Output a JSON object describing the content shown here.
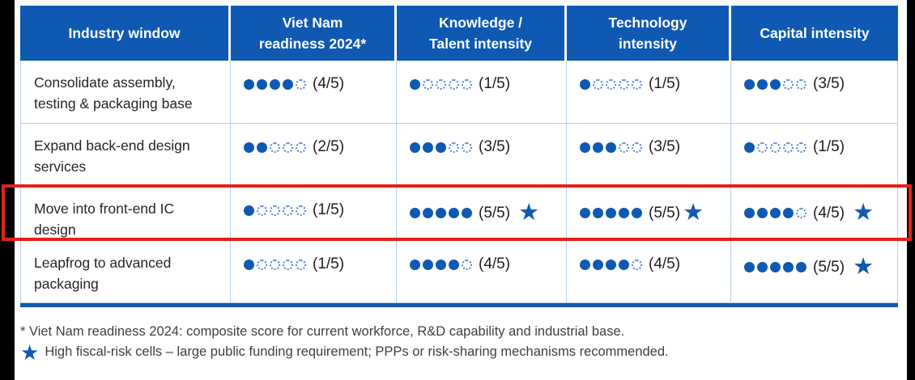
{
  "colors": {
    "header_bg": "#0F59B2",
    "dot_filled": "#0F59B2",
    "dot_empty_outline": "#5585D2",
    "star_blue": "#0F59B2",
    "grid_line": "#B7CFEC",
    "highlight_border": "#E32119",
    "edge_bars": "#000000"
  },
  "table": {
    "columns": [
      {
        "id": "industry",
        "label": "Industry window"
      },
      {
        "id": "readiness",
        "label": "Viet Nam\nreadiness 2024*"
      },
      {
        "id": "knowledge",
        "label": "Knowledge /\nTalent intensity"
      },
      {
        "id": "technology",
        "label": "Technology\nintensity"
      },
      {
        "id": "capital",
        "label": "Capital intensity"
      }
    ],
    "rows": [
      {
        "label": "Consolidate assembly,\ntesting & packaging base",
        "highlighted": false,
        "cells": [
          {
            "filled": 4,
            "total": 5,
            "text": "(4/5)",
            "star": false,
            "star_gap": false
          },
          {
            "filled": 1,
            "total": 5,
            "text": "(1/5)",
            "star": false,
            "star_gap": false
          },
          {
            "filled": 1,
            "total": 5,
            "text": "(1/5)",
            "star": false,
            "star_gap": false
          },
          {
            "filled": 3,
            "total": 5,
            "text": "(3/5)",
            "star": false,
            "star_gap": false
          }
        ]
      },
      {
        "label": "Expand back-end design\nservices",
        "highlighted": false,
        "cells": [
          {
            "filled": 2,
            "total": 5,
            "text": "(2/5)",
            "star": false,
            "star_gap": false
          },
          {
            "filled": 3,
            "total": 5,
            "text": "(3/5)",
            "star": false,
            "star_gap": false
          },
          {
            "filled": 3,
            "total": 5,
            "text": "(3/5)",
            "star": false,
            "star_gap": false
          },
          {
            "filled": 1,
            "total": 5,
            "text": "(1/5)",
            "star": false,
            "star_gap": false
          }
        ]
      },
      {
        "label": "Move into front-end IC\ndesign",
        "highlighted": true,
        "cells": [
          {
            "filled": 1,
            "total": 5,
            "text": "(1/5)",
            "star": false,
            "star_gap": false
          },
          {
            "filled": 5,
            "total": 5,
            "text": "(5/5)",
            "star": true,
            "star_gap": true
          },
          {
            "filled": 5,
            "total": 5,
            "text": "(5/5)",
            "star": true,
            "star_gap": false
          },
          {
            "filled": 4,
            "total": 5,
            "text": "(4/5)",
            "star": true,
            "star_gap": true
          }
        ]
      },
      {
        "label": "Leapfrog to advanced\npackaging",
        "highlighted": false,
        "cells": [
          {
            "filled": 1,
            "total": 5,
            "text": "(1/5)",
            "star": false,
            "star_gap": false
          },
          {
            "filled": 4,
            "total": 5,
            "text": "(4/5)",
            "star": false,
            "star_gap": false
          },
          {
            "filled": 4,
            "total": 5,
            "text": "(4/5)",
            "star": false,
            "star_gap": false
          },
          {
            "filled": 5,
            "total": 5,
            "text": "(5/5)",
            "star": true,
            "star_gap": true
          }
        ]
      }
    ]
  },
  "footnotes": {
    "asterisk_note": "* Viet Nam readiness 2024: composite score for current workforce, R&D capability and industrial base.",
    "star_icon": "★",
    "star_note": "High fiscal-risk cells – large public funding requirement; PPPs or risk-sharing mechanisms recommended."
  },
  "glyphs": {
    "star": "★"
  }
}
